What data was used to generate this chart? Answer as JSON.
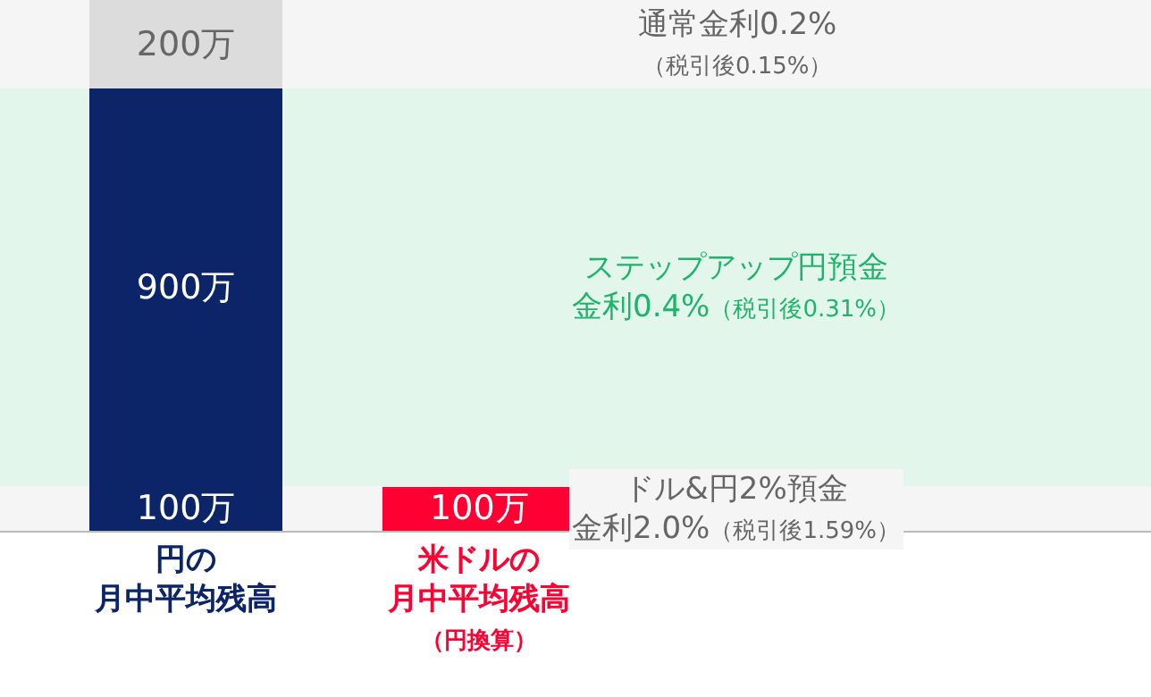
{
  "chart_data": {
    "type": "bar",
    "stacked": true,
    "categories": [
      "円の月中平均残高",
      "米ドルの月中平均残高（円換算）"
    ],
    "series": [
      {
        "colors": [
          "#0c2468",
          "#ff0033"
        ],
        "values": [
          100,
          100
        ],
        "value_labels": [
          "100万",
          "100万"
        ]
      },
      {
        "color": "#0c2468",
        "values": [
          900,
          null
        ],
        "value_labels": [
          "900万",
          null
        ]
      },
      {
        "color": "#dcdcdc",
        "values": [
          200,
          null
        ],
        "value_labels": [
          "200万",
          null
        ]
      }
    ],
    "ylim": [
      0,
      1200
    ],
    "tick_labels": "x",
    "grid": false,
    "bands": [
      {
        "axis": "y",
        "from": 0,
        "to": 100,
        "label": "ドル&円2%預金金利2.0%（税引後1.59%）",
        "color": "#f5f5f5"
      },
      {
        "axis": "y",
        "from": 100,
        "to": 1000,
        "label": "ステップアップ円預金金利0.4%（税引後0.31%）",
        "color": "#e3f6ec"
      },
      {
        "axis": "y",
        "from": 1000,
        "to": 1200,
        "label": "通常金利0.2%（税引後0.15%）",
        "color": "#f5f5f5"
      }
    ]
  }
}
